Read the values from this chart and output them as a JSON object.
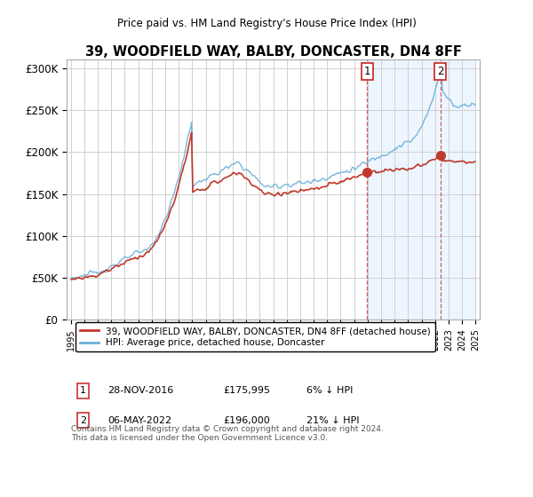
{
  "title": "39, WOODFIELD WAY, BALBY, DONCASTER, DN4 8FF",
  "subtitle": "Price paid vs. HM Land Registry's House Price Index (HPI)",
  "ylim": [
    0,
    310000
  ],
  "yticks": [
    0,
    50000,
    100000,
    150000,
    200000,
    250000,
    300000
  ],
  "ytick_labels": [
    "£0",
    "£50K",
    "£100K",
    "£150K",
    "£200K",
    "£250K",
    "£300K"
  ],
  "hpi_color": "#6baed6",
  "price_color": "#c0392b",
  "legend_label_price": "39, WOODFIELD WAY, BALBY, DONCASTER, DN4 8FF (detached house)",
  "legend_label_hpi": "HPI: Average price, detached house, Doncaster",
  "annotation1_label": "1",
  "annotation1_date": "28-NOV-2016",
  "annotation1_price": "£175,995",
  "annotation1_note": "6% ↓ HPI",
  "annotation1_year": 2016.92,
  "annotation1_value": 175995,
  "annotation2_label": "2",
  "annotation2_date": "06-MAY-2022",
  "annotation2_price": "£196,000",
  "annotation2_note": "21% ↓ HPI",
  "annotation2_year": 2022.37,
  "annotation2_value": 196000,
  "footnote": "Contains HM Land Registry data © Crown copyright and database right 2024.\nThis data is licensed under the Open Government Licence v3.0.",
  "background_color": "#ffffff",
  "plot_bg_color": "#ffffff",
  "grid_color": "#d0d0d0",
  "shaded_color": "#ddeeff"
}
